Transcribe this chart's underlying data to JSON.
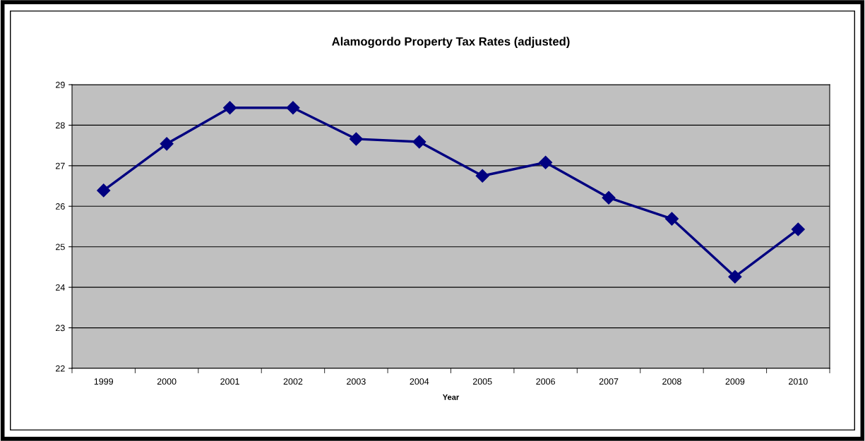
{
  "chart_data": {
    "type": "line",
    "title": "Alamogordo Property Tax Rates (adjusted)",
    "xlabel": "Year",
    "categories": [
      "1999",
      "2000",
      "2001",
      "2002",
      "2003",
      "2004",
      "2005",
      "2006",
      "2007",
      "2008",
      "2009",
      "2010"
    ],
    "series": [
      {
        "color": "#000080",
        "values": [
          26.39,
          27.54,
          28.43,
          28.43,
          27.66,
          27.59,
          26.75,
          27.08,
          26.21,
          25.69,
          24.26,
          25.43
        ]
      }
    ],
    "ylim": [
      22,
      29
    ],
    "yticks": [
      22,
      23,
      24,
      25,
      26,
      27,
      28,
      29
    ],
    "grid": "y",
    "marker": "diamond",
    "line_style": "solid"
  }
}
